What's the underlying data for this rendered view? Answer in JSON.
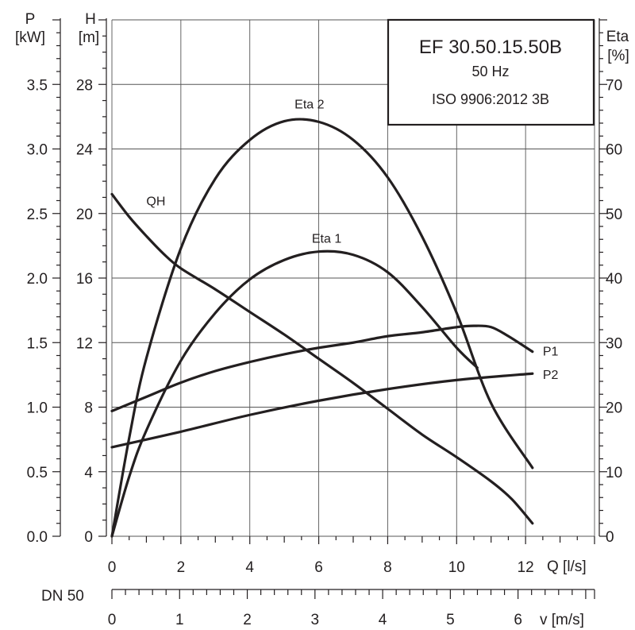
{
  "chart_data": {
    "type": "line",
    "title": "EF 30.50.15.50B",
    "subtitle_lines": [
      "50 Hz",
      "ISO 9906:2012 3B"
    ],
    "x_axis": {
      "label": "Q [l/s]",
      "range": [
        0,
        14
      ],
      "ticks": [
        "0",
        "2",
        "4",
        "6",
        "8",
        "10",
        "12"
      ],
      "tick_values": [
        0,
        2,
        4,
        6,
        8,
        10,
        12
      ],
      "grid": true
    },
    "h_axis": {
      "label_top": "H",
      "label_unit": "[m]",
      "range": [
        0,
        32
      ],
      "ticks": [
        "0",
        "4",
        "8",
        "12",
        "16",
        "20",
        "24",
        "28"
      ],
      "tick_values": [
        0,
        4,
        8,
        12,
        16,
        20,
        24,
        28
      ],
      "grid": true
    },
    "p_axis": {
      "label_top": "P",
      "label_unit": "[kW]",
      "range": [
        0,
        4
      ],
      "ticks": [
        "0.0",
        "0.5",
        "1.0",
        "1.5",
        "2.0",
        "2.5",
        "3.0",
        "3.5"
      ],
      "tick_values": [
        0,
        0.5,
        1.0,
        1.5,
        2.0,
        2.5,
        3.0,
        3.5
      ]
    },
    "eta_axis": {
      "label_top": "Eta",
      "label_unit": "[%]",
      "range": [
        0,
        80
      ],
      "ticks": [
        "0",
        "10",
        "20",
        "30",
        "40",
        "50",
        "60",
        "70"
      ],
      "tick_values": [
        0,
        10,
        20,
        30,
        40,
        50,
        60,
        70
      ]
    },
    "velocity_axis": {
      "pipe_label": "DN 50",
      "label": "v [m/s]",
      "ticks": [
        "0",
        "1",
        "2",
        "3",
        "4",
        "5",
        "6"
      ],
      "tick_values": [
        0,
        1,
        2,
        3,
        4,
        5,
        6
      ],
      "q_per_unit": 1.9635,
      "minor_per_major": 5
    },
    "series": [
      {
        "name": "QH",
        "axis": "h",
        "label_at": [
          1.0,
          20.5
        ],
        "points": [
          [
            0,
            21.2
          ],
          [
            0.5,
            19.8
          ],
          [
            1,
            18.6
          ],
          [
            1.5,
            17.5
          ],
          [
            2,
            16.6
          ],
          [
            3,
            15.3
          ],
          [
            4,
            13.9
          ],
          [
            5,
            12.5
          ],
          [
            6,
            11.0
          ],
          [
            7,
            9.5
          ],
          [
            8,
            7.9
          ],
          [
            9,
            6.3
          ],
          [
            10,
            4.9
          ],
          [
            11,
            3.4
          ],
          [
            11.6,
            2.3
          ],
          [
            12.2,
            0.8
          ]
        ]
      },
      {
        "name": "Eta 1",
        "axis": "eta",
        "label_at": [
          5.8,
          45.5
        ],
        "points": [
          [
            0,
            0
          ],
          [
            0.5,
            9.2
          ],
          [
            1,
            16.4
          ],
          [
            2,
            27.2
          ],
          [
            3,
            34.6
          ],
          [
            4,
            39.8
          ],
          [
            5,
            42.8
          ],
          [
            6,
            44.1
          ],
          [
            7,
            43.6
          ],
          [
            8,
            40.9
          ],
          [
            9,
            35.5
          ],
          [
            10,
            29.2
          ],
          [
            10.6,
            26.1
          ]
        ]
      },
      {
        "name": "Eta 2",
        "axis": "eta",
        "label_at": [
          5.3,
          66.3
        ],
        "points": [
          [
            0,
            0
          ],
          [
            0.5,
            15.2
          ],
          [
            1,
            27.6
          ],
          [
            2,
            44.6
          ],
          [
            3,
            55.4
          ],
          [
            4,
            61.4
          ],
          [
            5,
            64.3
          ],
          [
            6,
            64.2
          ],
          [
            7,
            61.4
          ],
          [
            8,
            55.6
          ],
          [
            9,
            46.4
          ],
          [
            10,
            34.6
          ],
          [
            11,
            20.6
          ],
          [
            12.2,
            10.6
          ]
        ]
      },
      {
        "name": "P1",
        "axis": "p",
        "label_at": [
          12.5,
          1.4
        ],
        "points": [
          [
            0,
            0.97
          ],
          [
            1,
            1.08
          ],
          [
            2,
            1.19
          ],
          [
            3,
            1.28
          ],
          [
            4,
            1.35
          ],
          [
            5,
            1.41
          ],
          [
            6,
            1.46
          ],
          [
            7,
            1.5
          ],
          [
            8,
            1.55
          ],
          [
            9,
            1.58
          ],
          [
            10,
            1.62
          ],
          [
            10.5,
            1.63
          ],
          [
            11,
            1.62
          ],
          [
            11.5,
            1.55
          ],
          [
            12.2,
            1.43
          ]
        ]
      },
      {
        "name": "P2",
        "axis": "p",
        "label_at": [
          12.5,
          1.22
        ],
        "points": [
          [
            0,
            0.69
          ],
          [
            2,
            0.81
          ],
          [
            4,
            0.94
          ],
          [
            6,
            1.05
          ],
          [
            8,
            1.14
          ],
          [
            10,
            1.21
          ],
          [
            12.2,
            1.26
          ]
        ]
      }
    ]
  }
}
